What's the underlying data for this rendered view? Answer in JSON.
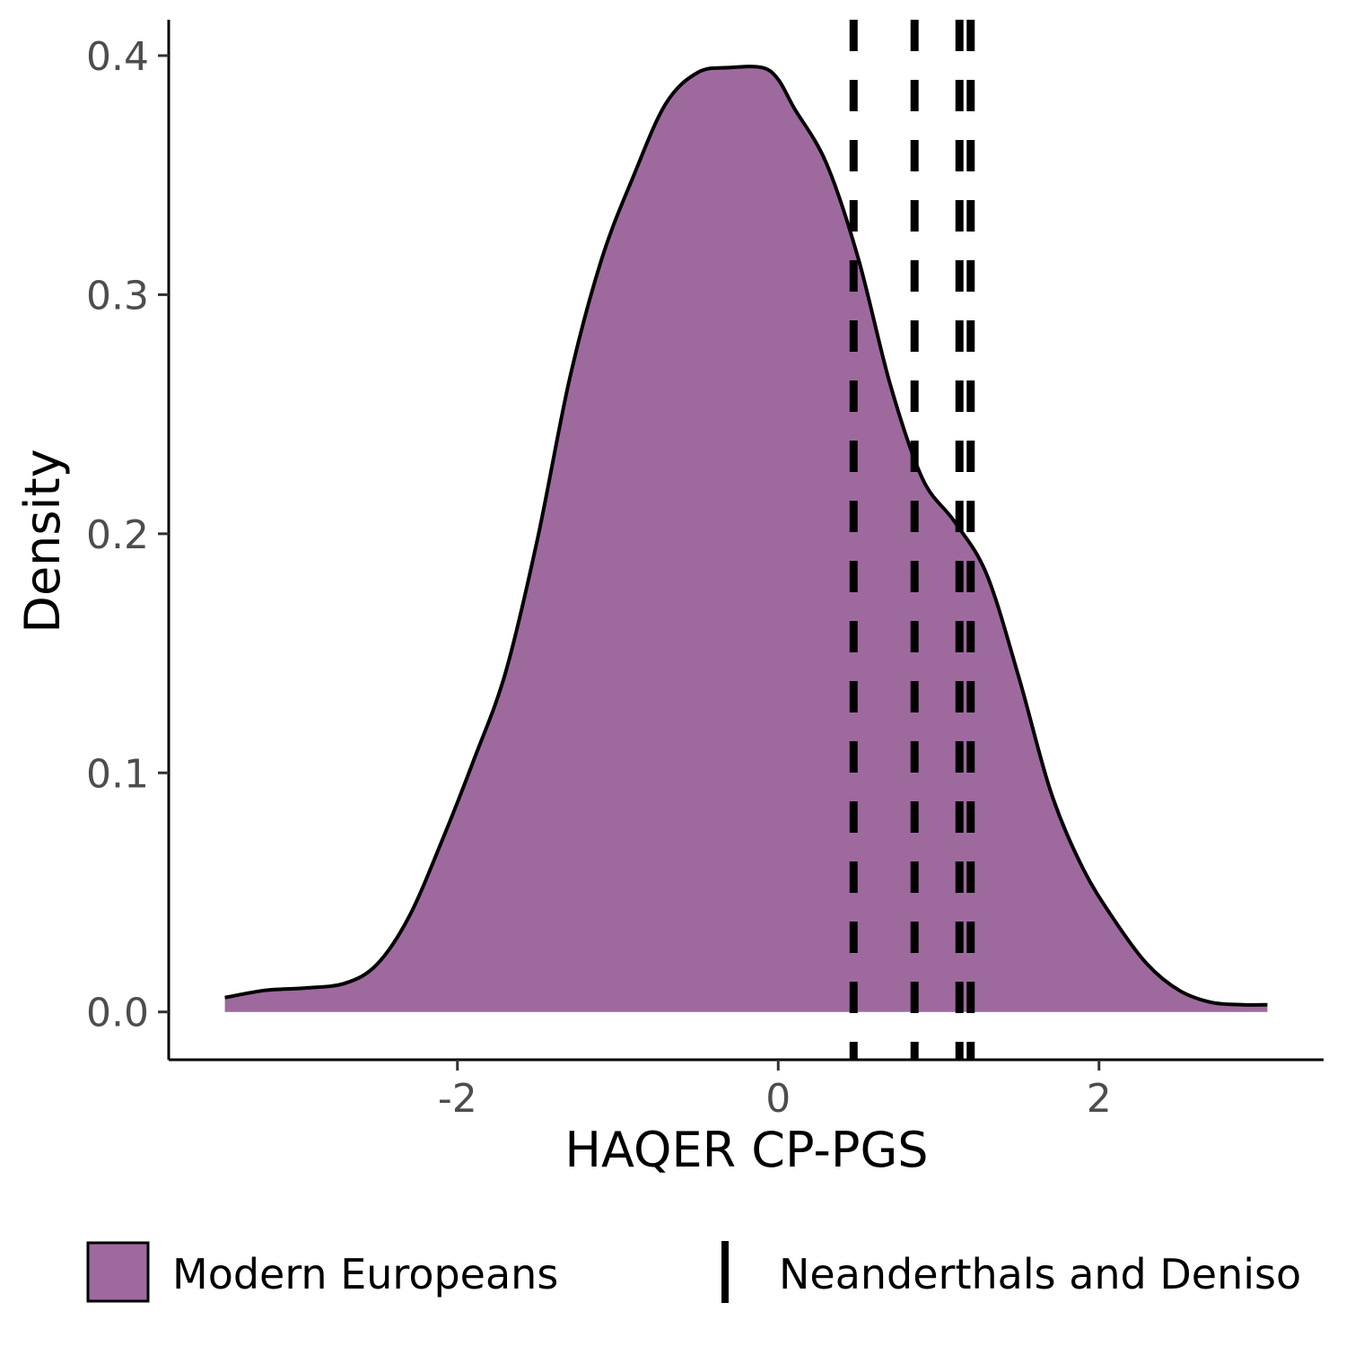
{
  "chart_data": {
    "type": "area",
    "xlabel": "HAQER CP-PGS",
    "ylabel": "Density",
    "xlim": [
      -3.8,
      3.4
    ],
    "ylim": [
      -0.02,
      0.415
    ],
    "x_ticks": [
      -2,
      0,
      2
    ],
    "x_tick_labels": [
      "-2",
      "0",
      "2"
    ],
    "y_ticks": [
      0.0,
      0.1,
      0.2,
      0.3,
      0.4
    ],
    "y_tick_labels": [
      "0.0",
      "0.1",
      "0.2",
      "0.3",
      "0.4"
    ],
    "grid": false,
    "legend_position": "bottom",
    "series": [
      {
        "name": "Modern Europeans",
        "kind": "density",
        "fill_color": "#9e6a9e",
        "line_color": "#000000",
        "x": [
          -3.45,
          -3.2,
          -2.95,
          -2.7,
          -2.5,
          -2.3,
          -2.1,
          -1.9,
          -1.7,
          -1.5,
          -1.3,
          -1.1,
          -0.9,
          -0.7,
          -0.5,
          -0.3,
          -0.1,
          0.0,
          0.1,
          0.3,
          0.5,
          0.7,
          0.9,
          1.1,
          1.3,
          1.5,
          1.7,
          1.9,
          2.1,
          2.3,
          2.5,
          2.7,
          2.9,
          3.05
        ],
        "y": [
          0.006,
          0.009,
          0.01,
          0.012,
          0.02,
          0.04,
          0.071,
          0.105,
          0.142,
          0.198,
          0.265,
          0.315,
          0.35,
          0.38,
          0.393,
          0.395,
          0.395,
          0.39,
          0.378,
          0.355,
          0.315,
          0.262,
          0.223,
          0.205,
          0.183,
          0.14,
          0.092,
          0.06,
          0.038,
          0.02,
          0.009,
          0.004,
          0.003,
          0.003
        ]
      },
      {
        "name": "Neanderthals and Deniso",
        "kind": "vline",
        "line_style": "dashed",
        "line_color": "#000000",
        "x": [
          0.47,
          0.85,
          1.13,
          1.2
        ]
      }
    ]
  }
}
